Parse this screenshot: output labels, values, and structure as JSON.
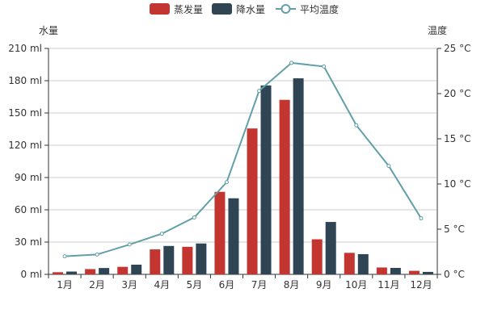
{
  "chart_data": {
    "type": "bar",
    "categories": [
      "1月",
      "2月",
      "3月",
      "4月",
      "5月",
      "6月",
      "7月",
      "8月",
      "9月",
      "10月",
      "11月",
      "12月"
    ],
    "series": [
      {
        "name": "蒸发量",
        "type": "bar",
        "axis": "left",
        "color": "#c23531",
        "values": [
          2.0,
          4.9,
          7.0,
          23.2,
          25.6,
          76.7,
          135.6,
          162.2,
          32.6,
          20.0,
          6.4,
          3.3
        ]
      },
      {
        "name": "降水量",
        "type": "bar",
        "axis": "left",
        "color": "#2f4554",
        "values": [
          2.6,
          5.9,
          9.0,
          26.4,
          28.7,
          70.7,
          175.6,
          182.2,
          48.7,
          18.8,
          6.0,
          2.3
        ]
      },
      {
        "name": "平均温度",
        "type": "line",
        "axis": "right",
        "color": "#61a0a8",
        "values": [
          2.0,
          2.2,
          3.3,
          4.5,
          6.3,
          10.2,
          20.3,
          23.4,
          23.0,
          16.5,
          12.0,
          6.2
        ]
      }
    ],
    "y_left": {
      "label": "水量",
      "min": 0,
      "max": 210,
      "interval": 30,
      "ticks": [
        "0 ml",
        "30 ml",
        "60 ml",
        "90 ml",
        "120 ml",
        "150 ml",
        "180 ml",
        "210 ml"
      ]
    },
    "y_right": {
      "label": "温度",
      "min": 0,
      "max": 25,
      "interval": 5,
      "ticks": [
        "0 °C",
        "5 °C",
        "10 °C",
        "15 °C",
        "20 °C",
        "25 °C"
      ]
    },
    "grid": true,
    "legend_position": "top-center"
  }
}
